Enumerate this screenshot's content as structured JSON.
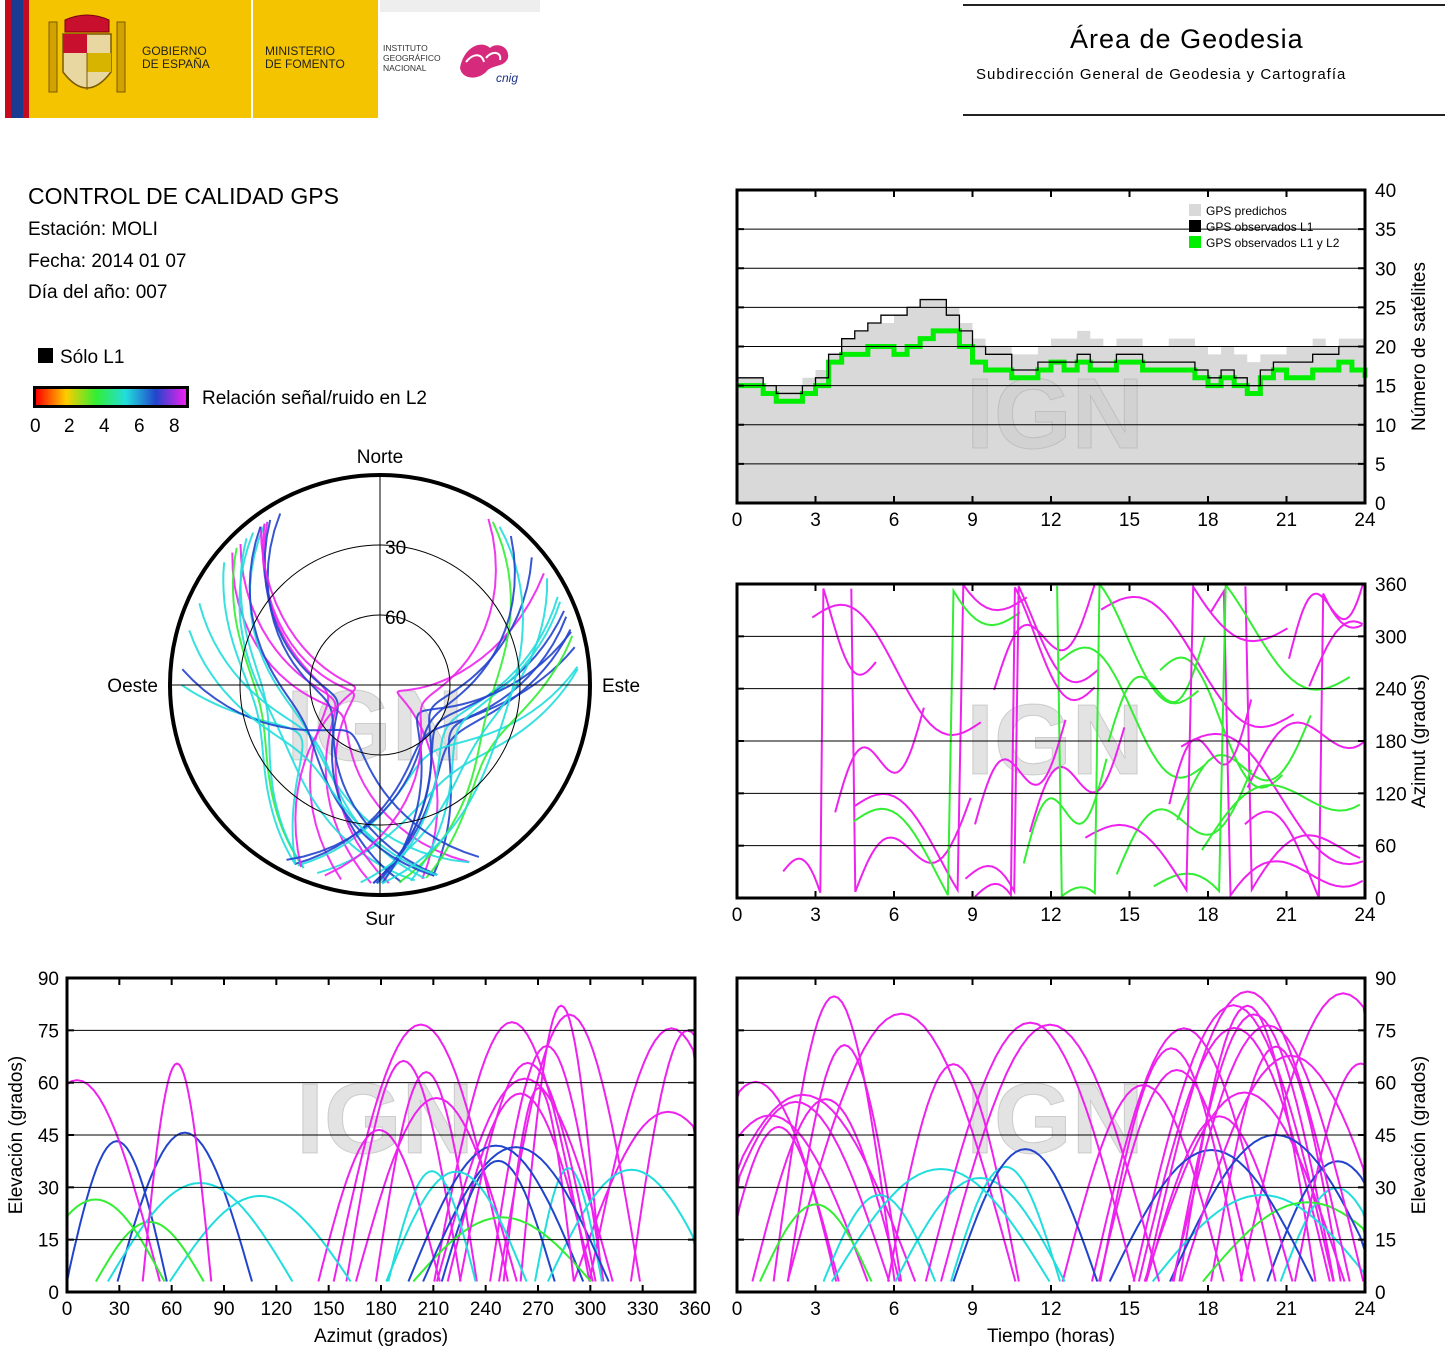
{
  "header": {
    "gobierno": [
      "GOBIERNO",
      "DE ESPAÑA"
    ],
    "ministerio": [
      "MINISTERIO",
      "DE FOMENTO"
    ],
    "instituto": [
      "INSTITUTO",
      "GEOGRÁFICO",
      "NACIONAL"
    ],
    "cnig": "cnig",
    "area_title": "Área de Geodesia",
    "area_subtitle": "Subdirección General de Geodesia y Cartografía"
  },
  "report": {
    "title": "CONTROL DE CALIDAD GPS",
    "station": "Estación: MOLI",
    "date": "Fecha: 2014 01 07",
    "doy": "Día del año: 007"
  },
  "legend": {
    "solo_l1": "Sólo L1",
    "snr_label": "Relación señal/ruido en L2",
    "snr_ticks": [
      "0",
      "2",
      "4",
      "6",
      "8"
    ]
  },
  "colors": {
    "predicted": "#d9d9d9",
    "observed_l1": "#000000",
    "observed_l1_l2": "#00ee00",
    "track": "#ee22ee",
    "snr_scale": [
      "#ff0000",
      "#ffcc00",
      "#33ee33",
      "#22dddd",
      "#2244cc",
      "#ee22ee"
    ]
  },
  "watermark": "IGN",
  "chart_data": [
    {
      "type": "area",
      "name": "satellite-count",
      "x": [
        0,
        0.5,
        1,
        1.5,
        2,
        2.5,
        3,
        3.5,
        4,
        4.5,
        5,
        5.5,
        6,
        6.5,
        7,
        7.5,
        8,
        8.5,
        9,
        9.5,
        10,
        10.5,
        11,
        11.5,
        12,
        12.5,
        13,
        13.5,
        14,
        14.5,
        15,
        15.5,
        16,
        16.5,
        17,
        17.5,
        18,
        18.5,
        19,
        19.5,
        20,
        20.5,
        21,
        21.5,
        22,
        22.5,
        23,
        23.5,
        24
      ],
      "series": [
        {
          "name": "GPS predichos",
          "values": [
            16,
            16,
            15,
            15,
            15,
            16,
            17,
            19,
            21,
            22,
            23,
            23,
            24,
            25,
            26,
            26,
            25,
            23,
            21,
            20,
            20,
            19,
            19,
            20,
            21,
            21,
            22,
            21,
            20,
            21,
            21,
            20,
            20,
            21,
            21,
            20,
            19,
            20,
            19,
            18,
            19,
            19,
            20,
            20,
            21,
            20,
            21,
            21,
            20
          ]
        },
        {
          "name": "GPS observados L1",
          "values": [
            16,
            16,
            15,
            14,
            14,
            15,
            16,
            19,
            21,
            22,
            23,
            24,
            24,
            25,
            26,
            26,
            24,
            22,
            20,
            19,
            19,
            17,
            17,
            18,
            18,
            18,
            19,
            18,
            18,
            19,
            19,
            18,
            18,
            18,
            18,
            17,
            16,
            17,
            16,
            15,
            17,
            18,
            18,
            18,
            19,
            19,
            20,
            20,
            18
          ]
        },
        {
          "name": "GPS observados L1 y L2",
          "values": [
            15,
            15,
            14,
            13,
            13,
            14,
            15,
            18,
            19,
            19,
            20,
            20,
            19,
            20,
            21,
            22,
            22,
            20,
            18,
            17,
            17,
            16,
            16,
            17,
            18,
            17,
            18,
            17,
            17,
            18,
            18,
            17,
            17,
            17,
            17,
            16,
            15,
            16,
            15,
            14,
            16,
            17,
            16,
            16,
            17,
            17,
            18,
            17,
            16
          ]
        }
      ],
      "ylabel": "Número de satélites",
      "xlim": [
        0,
        24
      ],
      "ylim": [
        0,
        40
      ],
      "xticks": [
        "0",
        "3",
        "6",
        "9",
        "12",
        "15",
        "18",
        "21",
        "24"
      ],
      "yticks": [
        "0",
        "5",
        "10",
        "15",
        "20",
        "25",
        "30",
        "35",
        "40"
      ],
      "legend_position": "top-right",
      "grid": true
    },
    {
      "type": "scatter",
      "name": "skyplot",
      "labels": {
        "north": "Norte",
        "south": "Sur",
        "west": "Oeste",
        "east": "Este"
      },
      "rings": [
        "30",
        "60"
      ]
    },
    {
      "type": "scatter",
      "name": "azimuth-time",
      "ylabel": "Azimut (grados)",
      "xlim": [
        0,
        24
      ],
      "ylim": [
        0,
        360
      ],
      "xticks": [
        "0",
        "3",
        "6",
        "9",
        "12",
        "15",
        "18",
        "21",
        "24"
      ],
      "yticks": [
        "0",
        "60",
        "120",
        "180",
        "240",
        "300",
        "360"
      ],
      "grid": true
    },
    {
      "type": "scatter",
      "name": "elevation-azimuth",
      "xlabel": "Azimut (grados)",
      "ylabel": "Elevación (grados)",
      "xlim": [
        0,
        360
      ],
      "ylim": [
        0,
        90
      ],
      "xticks": [
        "0",
        "30",
        "60",
        "90",
        "120",
        "150",
        "180",
        "210",
        "240",
        "270",
        "300",
        "330",
        "360"
      ],
      "yticks": [
        "0",
        "15",
        "30",
        "45",
        "60",
        "75",
        "90"
      ],
      "grid": true
    },
    {
      "type": "scatter",
      "name": "elevation-time",
      "xlabel": "Tiempo (horas)",
      "ylabel": "Elevación (grados)",
      "xlim": [
        0,
        24
      ],
      "ylim": [
        0,
        90
      ],
      "xticks": [
        "0",
        "3",
        "6",
        "9",
        "12",
        "15",
        "18",
        "21",
        "24"
      ],
      "yticks": [
        "0",
        "15",
        "30",
        "45",
        "60",
        "75",
        "90"
      ],
      "grid": true
    }
  ]
}
